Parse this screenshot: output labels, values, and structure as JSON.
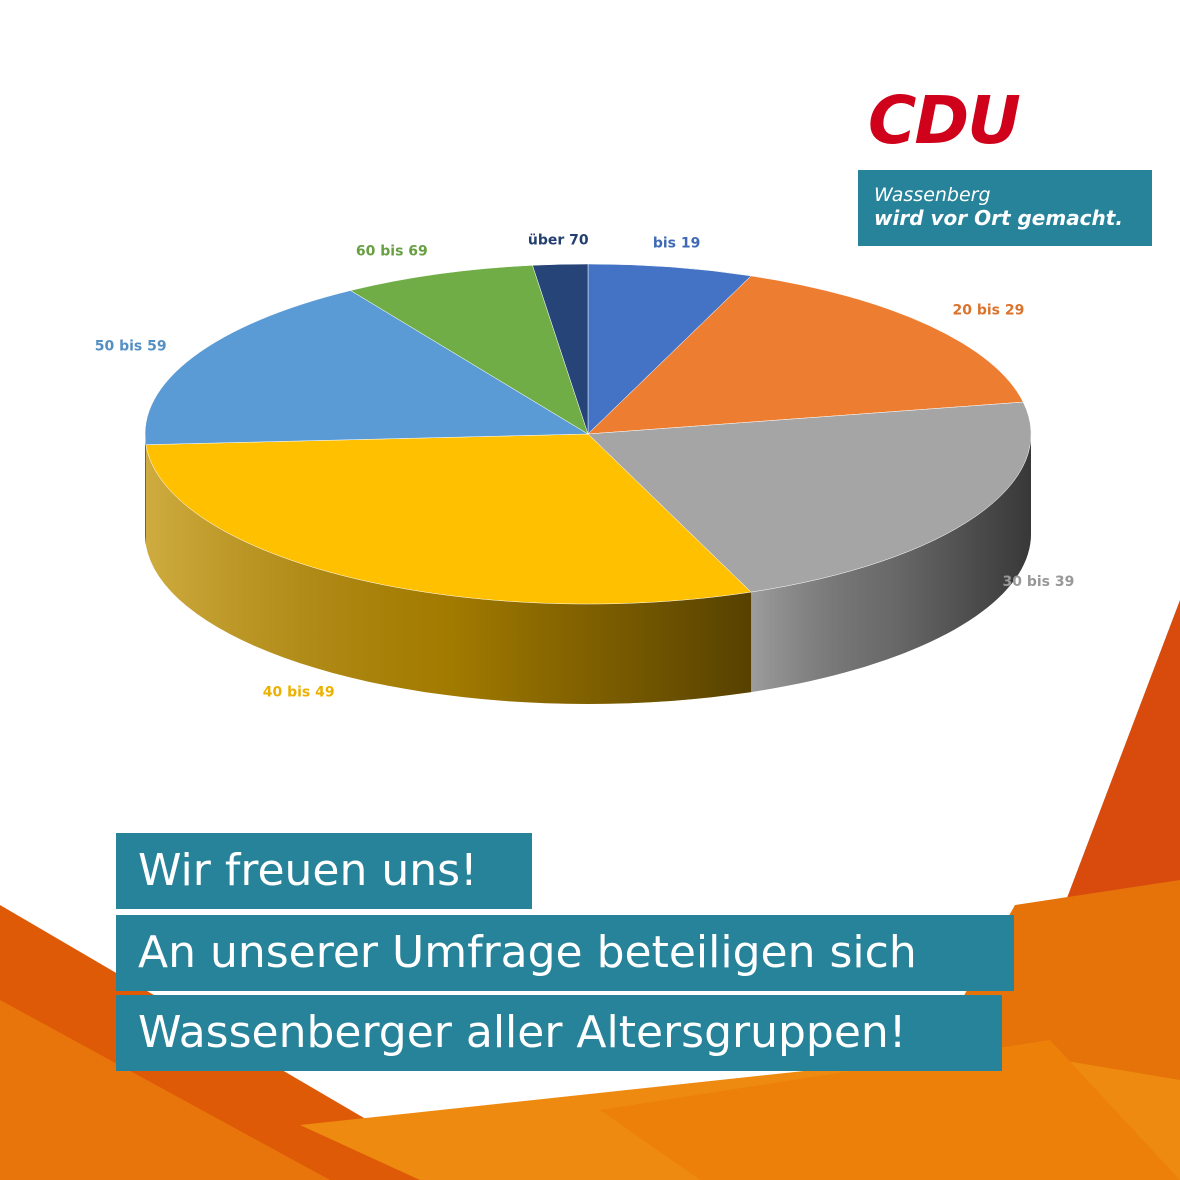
{
  "brand": {
    "logo_text": "CDU",
    "slogan_line1": "Wassenberg",
    "slogan_line2": "wird vor Ort gemacht.",
    "logo_color": "#d0021b",
    "box_color": "#268399"
  },
  "headline": {
    "line1": "Wir freuen uns!",
    "line2": "An unserer Umfrage beteiligen sich",
    "line3": "Wassenberger aller Altersgruppen!"
  },
  "chart_data": {
    "type": "pie",
    "style": "3d",
    "title": "",
    "labels": [
      "bis 19",
      "20 bis 29",
      "30 bis 39",
      "40 bis 49",
      "50 bis 59",
      "60 bis 69",
      "über 70"
    ],
    "values": [
      6,
      16,
      22,
      30,
      17,
      7,
      2
    ],
    "colors": [
      "#4472c4",
      "#ed7d31",
      "#a5a5a5",
      "#ffc000",
      "#5b9bd5",
      "#70ad47",
      "#264478"
    ],
    "legend": "none",
    "data_labels": "category names outside slices"
  }
}
